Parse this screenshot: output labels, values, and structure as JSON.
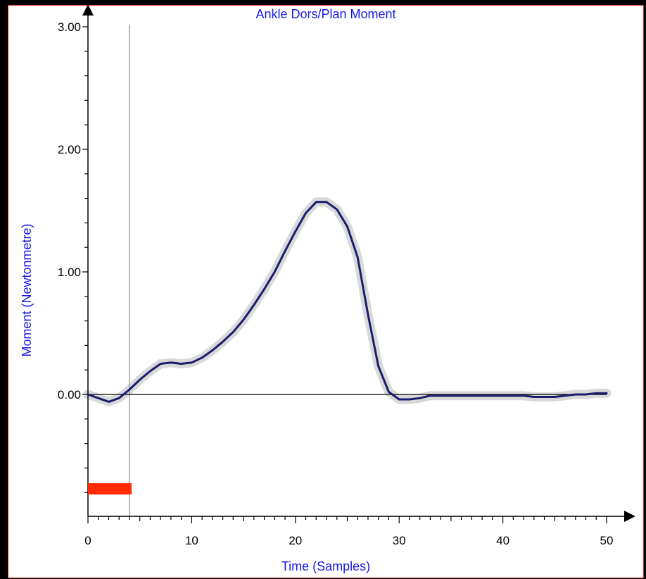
{
  "chart_data": {
    "type": "line",
    "title": "Ankle Dors/Plan Moment",
    "xlabel": "Time (Samples)",
    "ylabel": "Moment  (Newtonmetre)",
    "xlim": [
      0,
      50
    ],
    "ylim": [
      -1.0,
      3.0
    ],
    "x_ticks": [
      0,
      10,
      20,
      30,
      40,
      50
    ],
    "x_tick_labels": [
      "0",
      "10",
      "20",
      "30",
      "40",
      "50"
    ],
    "y_ticks": [
      0,
      1,
      2,
      3
    ],
    "y_tick_labels": [
      "0.00",
      "1.00",
      "2.00",
      "3.00"
    ],
    "cursor_x": 4,
    "stance_bar": {
      "x_start": 0,
      "x_end": 4.2,
      "y": -0.77,
      "color": "#ff2a00"
    },
    "series": [
      {
        "color": "#1c1c6e",
        "band_color": "#d9d9d9",
        "x": [
          0,
          1,
          2,
          3,
          4,
          5,
          6,
          7,
          8,
          9,
          10,
          11,
          12,
          13,
          14,
          15,
          16,
          17,
          18,
          19,
          20,
          21,
          22,
          23,
          24,
          25,
          26,
          27,
          28,
          29,
          30,
          31,
          32,
          33,
          34,
          36,
          38,
          40,
          42,
          43,
          44,
          45,
          46,
          47,
          48,
          49,
          50
        ],
        "values": [
          0.0,
          -0.03,
          -0.06,
          -0.03,
          0.04,
          0.12,
          0.19,
          0.25,
          0.26,
          0.25,
          0.26,
          0.3,
          0.36,
          0.43,
          0.51,
          0.61,
          0.73,
          0.86,
          1.0,
          1.17,
          1.33,
          1.48,
          1.57,
          1.57,
          1.51,
          1.37,
          1.12,
          0.65,
          0.23,
          0.02,
          -0.04,
          -0.04,
          -0.03,
          -0.01,
          -0.01,
          -0.01,
          -0.01,
          -0.01,
          -0.01,
          -0.02,
          -0.02,
          -0.02,
          -0.01,
          0.0,
          0.0,
          0.01,
          0.01
        ]
      }
    ]
  }
}
